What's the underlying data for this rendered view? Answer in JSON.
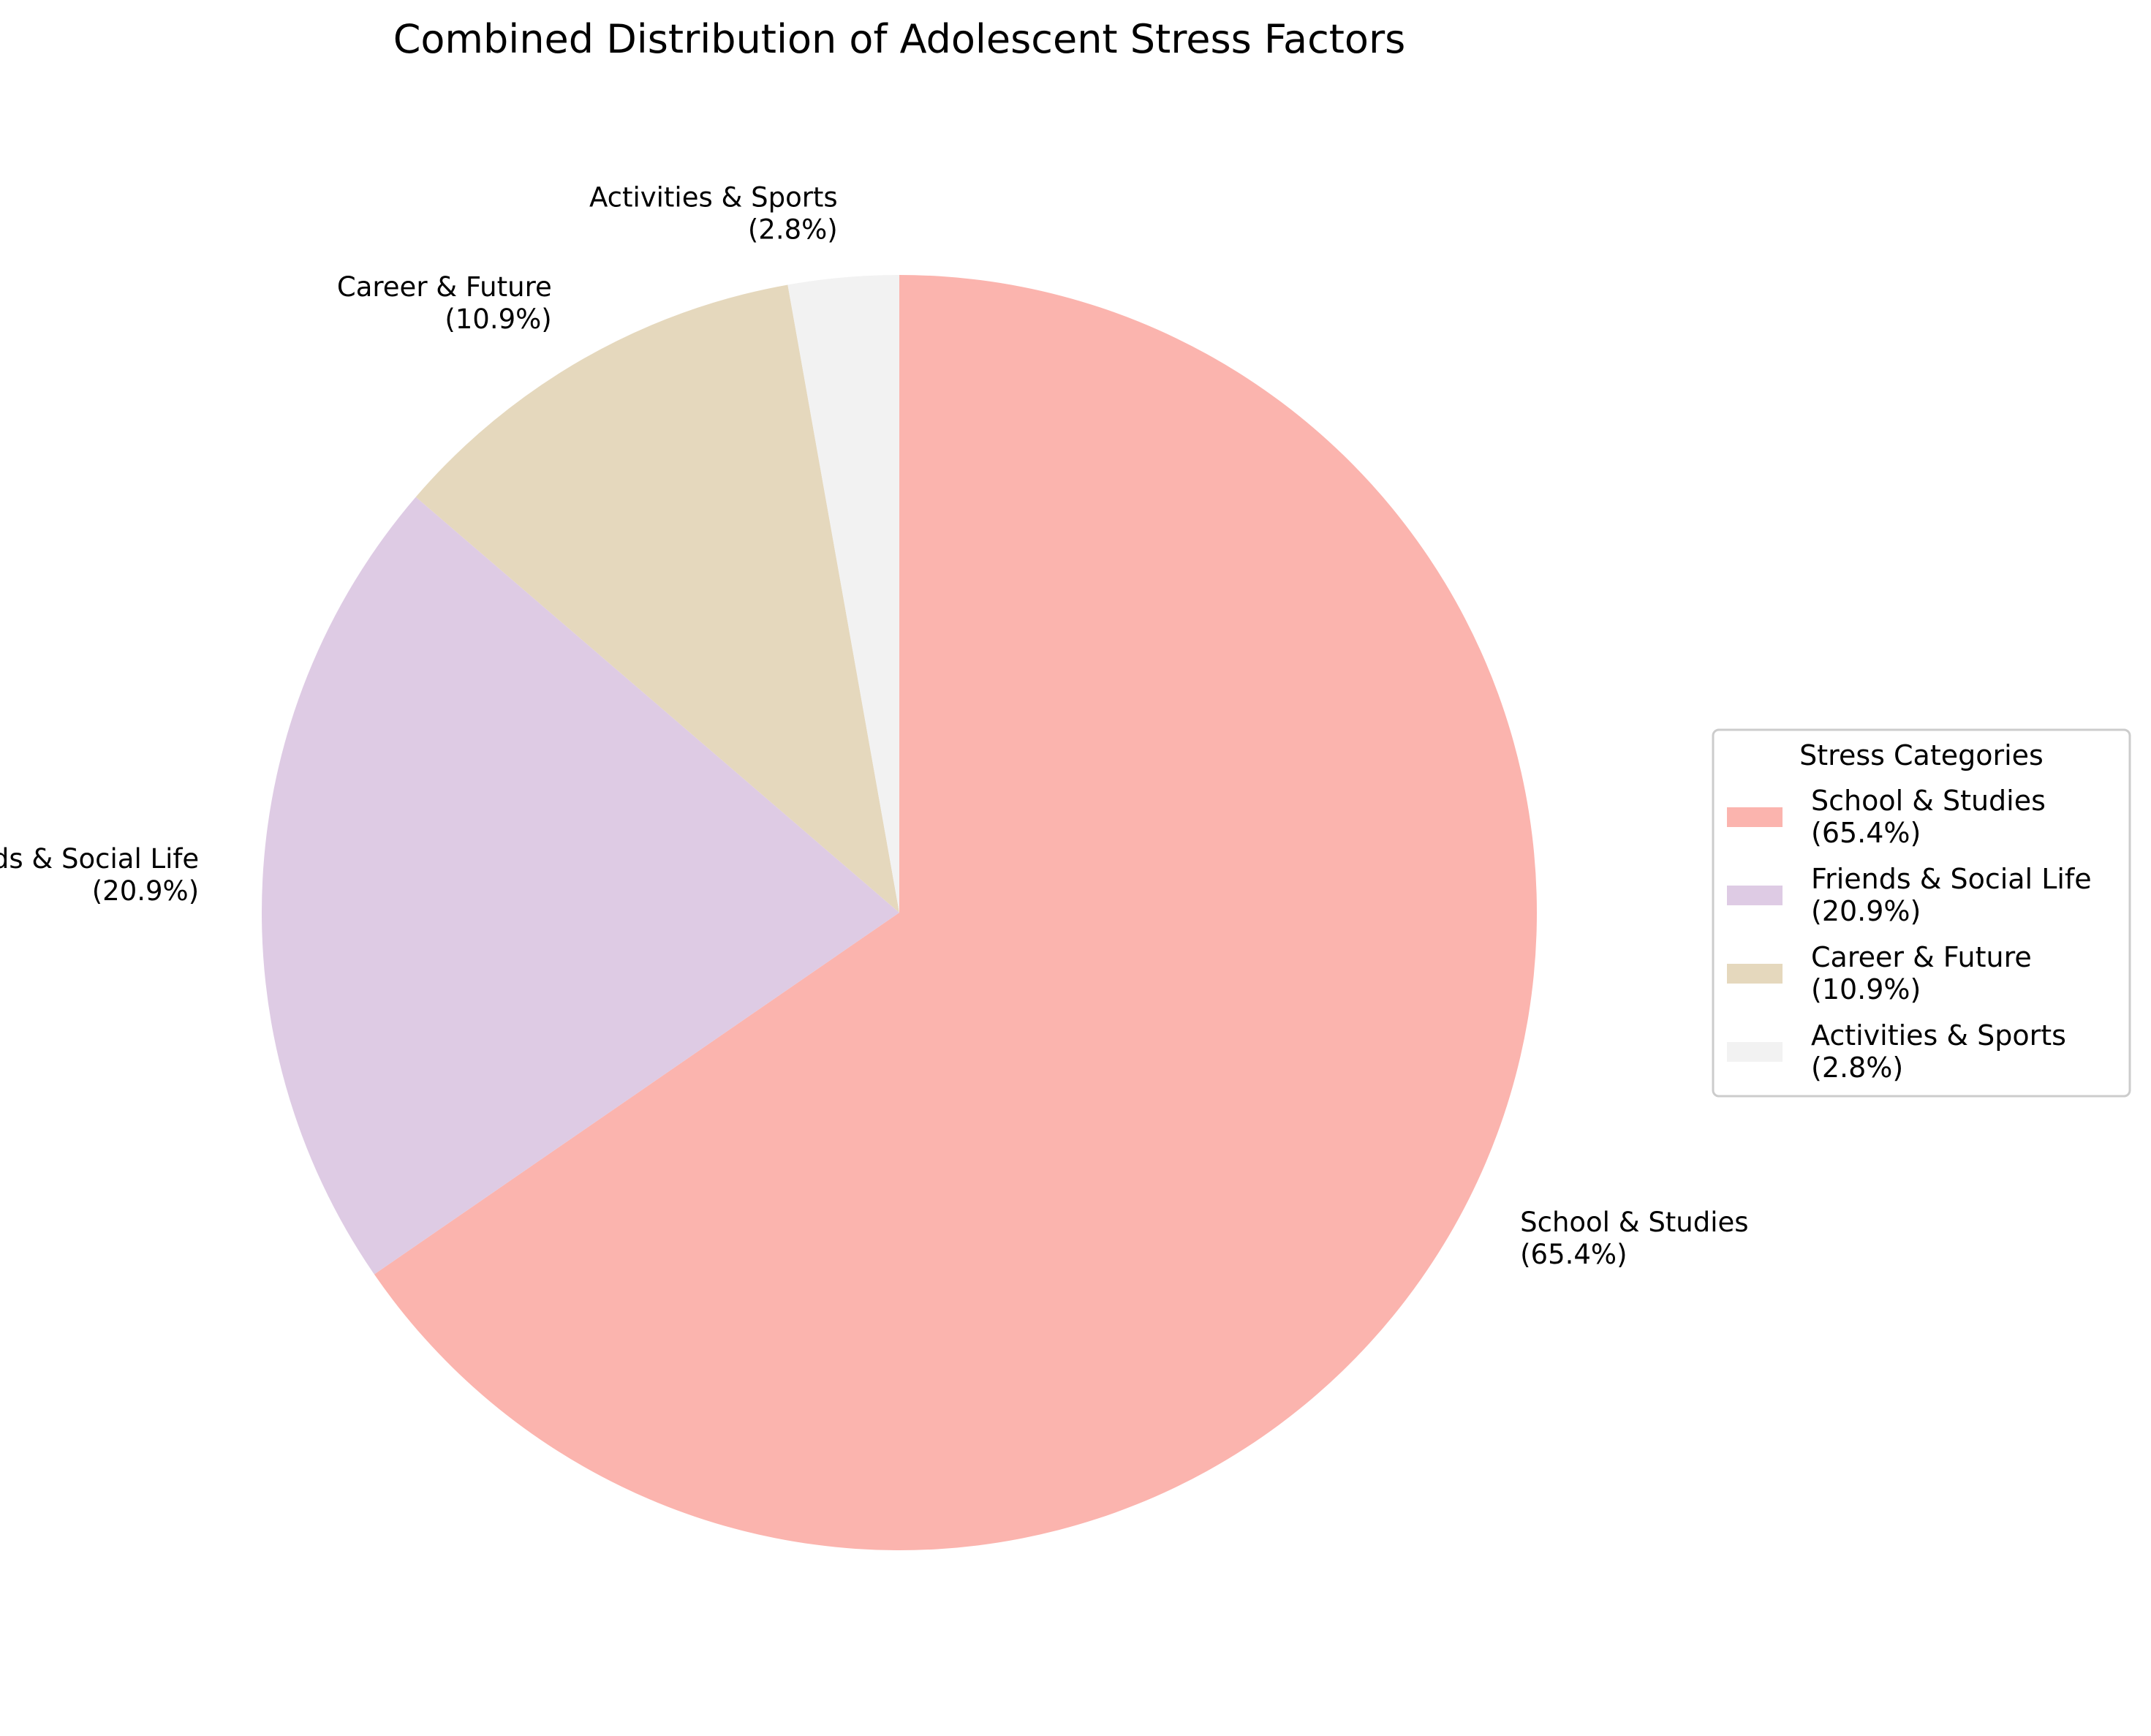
{
  "chart_data": {
    "type": "pie",
    "title": "Combined Distribution of Adolescent Stress Factors",
    "slices": [
      {
        "name": "School & Studies",
        "label_line1": "School & Studies",
        "label_line2": "(65.4%)",
        "value": 65.4,
        "color": "#fbb4ae"
      },
      {
        "name": "Friends & Social Life",
        "label_line1": "Friends & Social Life",
        "label_line2": "(20.9%)",
        "value": 20.9,
        "color": "#decbe4"
      },
      {
        "name": "Career & Future",
        "label_line1": "Career & Future",
        "label_line2": "(10.9%)",
        "value": 10.9,
        "color": "#e5d8bd"
      },
      {
        "name": "Activities & Sports",
        "label_line1": "Activities & Sports",
        "label_line2": "(2.8%)",
        "value": 2.8,
        "color": "#f2f2f2"
      }
    ],
    "start_angle": "12 o'clock",
    "direction": "clockwise",
    "legend": {
      "title": "Stress Categories",
      "placement": "right"
    }
  }
}
